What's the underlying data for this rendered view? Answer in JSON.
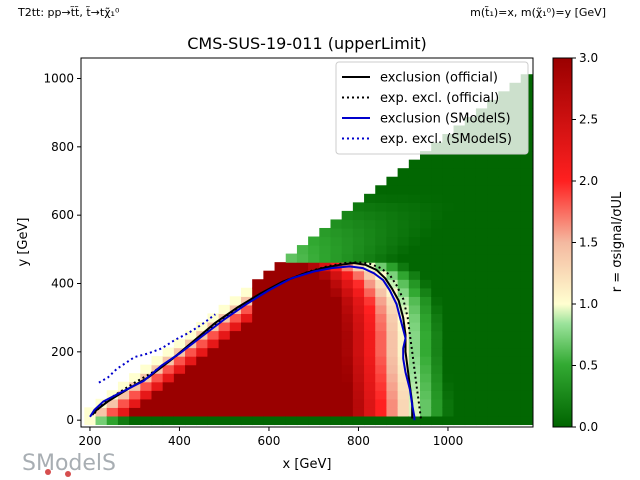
{
  "header": {
    "left_text": "T2tt: pp→t̃t̃, t̃→tχ̃₁⁰",
    "right_text": "m(t̃₁)=x, m(χ̃₁⁰)=y [GeV]"
  },
  "logo": {
    "text": "SModelS",
    "color": "#9aa0a6"
  },
  "colors": {
    "official_line": "#000000",
    "smodels_line": "#0000cc"
  },
  "chart_data": {
    "type": "heatmap",
    "title": "CMS-SUS-19-011 (upperLimit)",
    "xlabel": "x [GeV]",
    "ylabel": "y [GeV]",
    "xlim": [
      180,
      1190
    ],
    "ylim": [
      -20,
      1060
    ],
    "xticks": [
      200,
      400,
      600,
      800,
      1000
    ],
    "yticks": [
      0,
      200,
      400,
      600,
      800,
      1000
    ],
    "grid": false,
    "legend_position": "top-right",
    "colorbar": {
      "label": "r = σsignal/σUL",
      "range": [
        0.0,
        3.0
      ],
      "ticks": [
        0.0,
        0.5,
        1.0,
        1.5,
        2.0,
        2.5,
        3.0
      ],
      "colormap": "green-white-red (reversed RdYlGn-like)"
    },
    "heatmap_description": "r values on a 25 GeV grid; r ≈ 3 (dark red) deep inside the excluded triangle, ≈1 at the exclusion contour, ≈0 (dark green) at high stop mass",
    "series": [
      {
        "name": "exclusion (official)",
        "style": "solid",
        "color": "#000000",
        "x": [
          205,
          215,
          240,
          265,
          290,
          330,
          380,
          430,
          480,
          530,
          580,
          630,
          680,
          720,
          760,
          790,
          815,
          840,
          860,
          875,
          890,
          900,
          905,
          905,
          910,
          915,
          920,
          920
        ],
        "y": [
          15,
          30,
          55,
          75,
          95,
          125,
          175,
          230,
          285,
          330,
          370,
          405,
          430,
          445,
          455,
          460,
          455,
          440,
          415,
          385,
          350,
          300,
          250,
          200,
          150,
          100,
          50,
          5
        ]
      },
      {
        "name": "exp. excl. (official)",
        "style": "dotted",
        "color": "#000000",
        "x": [
          210,
          220,
          240,
          270,
          300,
          340,
          390,
          440,
          490,
          540,
          590,
          640,
          690,
          730,
          770,
          800,
          825,
          850,
          870,
          885,
          900,
          910,
          915,
          920,
          925,
          930,
          935,
          940
        ],
        "y": [
          20,
          35,
          60,
          85,
          110,
          140,
          185,
          240,
          290,
          335,
          375,
          410,
          435,
          450,
          460,
          462,
          458,
          445,
          425,
          395,
          355,
          300,
          250,
          200,
          150,
          100,
          50,
          0
        ]
      },
      {
        "name": "exclusion (SModelS)",
        "style": "solid",
        "color": "#0000cc",
        "x": [
          200,
          210,
          230,
          260,
          290,
          320,
          360,
          400,
          450,
          500,
          550,
          600,
          650,
          700,
          740,
          780,
          810,
          835,
          855,
          870,
          885,
          895,
          905,
          900,
          900,
          905,
          915,
          920,
          925,
          925
        ],
        "y": [
          10,
          30,
          55,
          75,
          95,
          115,
          160,
          195,
          245,
          295,
          340,
          380,
          415,
          435,
          445,
          450,
          445,
          430,
          410,
          380,
          340,
          290,
          240,
          210,
          180,
          140,
          90,
          45,
          10,
          0
        ]
      },
      {
        "name": "exp. excl. (SModelS)",
        "style": "dotted",
        "color": "#0000cc",
        "x": [
          220,
          240,
          260,
          300,
          330,
          360,
          390,
          420,
          450,
          480
        ],
        "y": [
          110,
          125,
          150,
          185,
          195,
          210,
          235,
          255,
          280,
          310
        ]
      }
    ]
  }
}
